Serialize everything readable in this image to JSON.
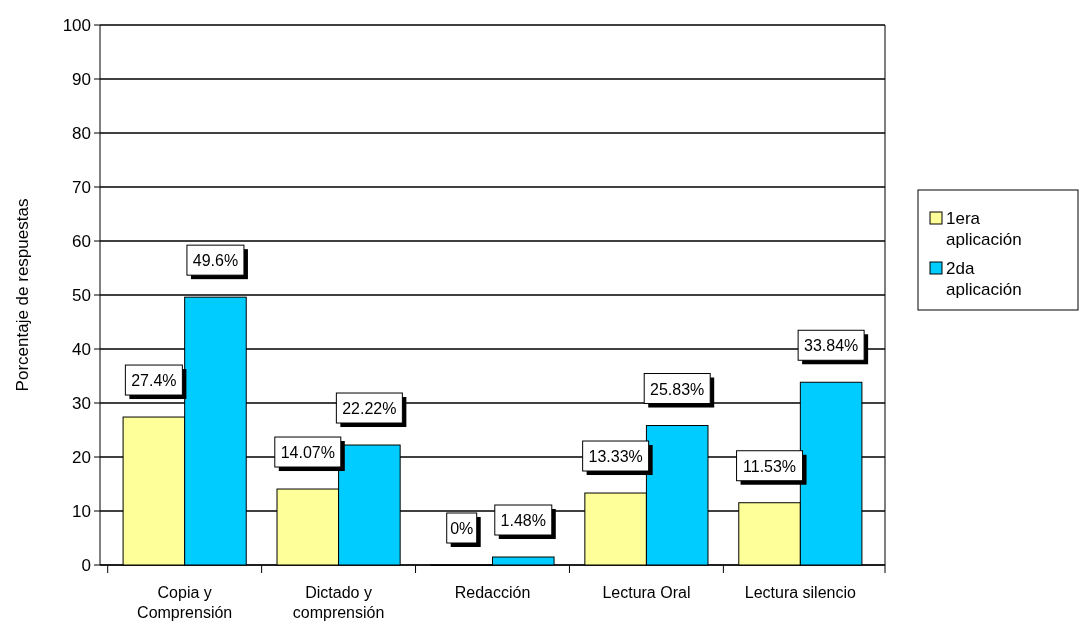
{
  "chart_data": {
    "type": "bar",
    "ylabel": "Porcentaje de respuestas",
    "categories": [
      "Copia y Comprensión",
      "Dictado y comprensión",
      "Redacción",
      "Lectura Oral",
      "Lectura silencio"
    ],
    "series": [
      {
        "name": "1era aplicación",
        "color": "#ffff99",
        "values": [
          27.4,
          14.07,
          0,
          13.33,
          11.53
        ],
        "value_labels": [
          "27.4%",
          "14.07%",
          "0%",
          "13.33%",
          "11.53%"
        ]
      },
      {
        "name": "2da aplicación",
        "color": "#00ccff",
        "values": [
          49.6,
          22.22,
          1.48,
          25.83,
          33.84
        ],
        "value_labels": [
          "49.6%",
          "22.22%",
          "1.48%",
          "25.83%",
          "33.84%"
        ]
      }
    ],
    "ylim": [
      0,
      100
    ],
    "yticks": [
      0,
      10,
      20,
      30,
      40,
      50,
      60,
      70,
      80,
      90,
      100
    ],
    "grid": "y",
    "legend": "right"
  }
}
